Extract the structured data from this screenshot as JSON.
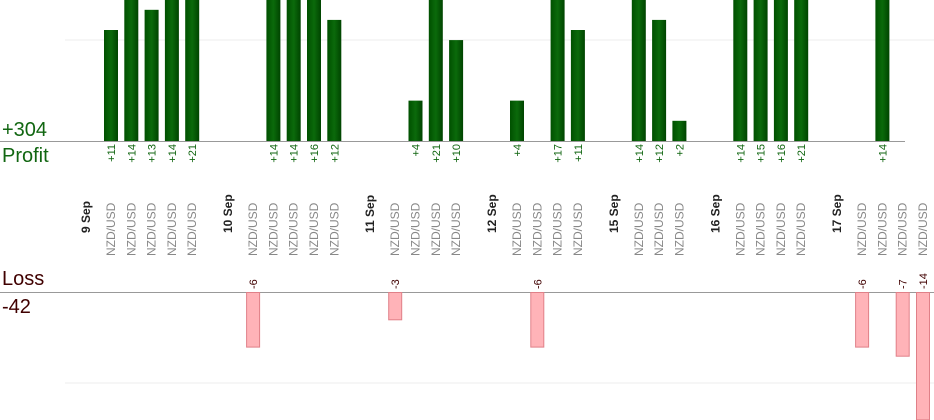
{
  "summary": {
    "profit_total": "+304",
    "profit_label": "Profit",
    "loss_label": "Loss",
    "loss_total": "-42"
  },
  "colors": {
    "profit_bar": "#0b6a0b",
    "profit_text": "#116611",
    "loss_bar": "#ffb3b8",
    "loss_bar_border": "#e08088",
    "loss_text": "#400000",
    "date_text": "#222222",
    "pair_text": "#888888",
    "axis": "#999999",
    "grid": "#eeeeee"
  },
  "chart_data": {
    "type": "bar",
    "title": "",
    "xlabel": "",
    "ylabel": "",
    "grid": true,
    "dates": [
      "9 Sep",
      "10 Sep",
      "11 Sep",
      "12 Sep",
      "15 Sep",
      "16 Sep",
      "17 Sep"
    ],
    "groups": [
      {
        "date": "9 Sep",
        "trades": [
          {
            "pair": "NZD/USD",
            "value": 11,
            "label": "+11"
          },
          {
            "pair": "NZD/USD",
            "value": 14,
            "label": "+14"
          },
          {
            "pair": "NZD/USD",
            "value": 13,
            "label": "+13"
          },
          {
            "pair": "NZD/USD",
            "value": 14,
            "label": "+14"
          },
          {
            "pair": "NZD/USD",
            "value": 21,
            "label": "+21"
          }
        ]
      },
      {
        "date": "10 Sep",
        "trades": [
          {
            "pair": "NZD/USD",
            "value": -6,
            "label": "-6"
          },
          {
            "pair": "NZD/USD",
            "value": 14,
            "label": "+14"
          },
          {
            "pair": "NZD/USD",
            "value": 14,
            "label": "+14"
          },
          {
            "pair": "NZD/USD",
            "value": 16,
            "label": "+16"
          },
          {
            "pair": "NZD/USD",
            "value": 12,
            "label": "+12"
          }
        ]
      },
      {
        "date": "11 Sep",
        "trades": [
          {
            "pair": "NZD/USD",
            "value": -3,
            "label": "-3"
          },
          {
            "pair": "NZD/USD",
            "value": 4,
            "label": "+4"
          },
          {
            "pair": "NZD/USD",
            "value": 21,
            "label": "+21"
          },
          {
            "pair": "NZD/USD",
            "value": 10,
            "label": "+10"
          }
        ]
      },
      {
        "date": "12 Sep",
        "trades": [
          {
            "pair": "NZD/USD",
            "value": 4,
            "label": "+4"
          },
          {
            "pair": "NZD/USD",
            "value": -6,
            "label": "-6"
          },
          {
            "pair": "NZD/USD",
            "value": 17,
            "label": "+17"
          },
          {
            "pair": "NZD/USD",
            "value": 11,
            "label": "+11"
          }
        ]
      },
      {
        "date": "15 Sep",
        "trades": [
          {
            "pair": "NZD/USD",
            "value": 14,
            "label": "+14"
          },
          {
            "pair": "NZD/USD",
            "value": 12,
            "label": "+12"
          },
          {
            "pair": "NZD/USD",
            "value": 2,
            "label": "+2"
          }
        ]
      },
      {
        "date": "16 Sep",
        "trades": [
          {
            "pair": "NZD/USD",
            "value": 14,
            "label": "+14"
          },
          {
            "pair": "NZD/USD",
            "value": 15,
            "label": "+15"
          },
          {
            "pair": "NZD/USD",
            "value": 16,
            "label": "+16"
          },
          {
            "pair": "NZD/USD",
            "value": 21,
            "label": "+21"
          }
        ]
      },
      {
        "date": "17 Sep",
        "trades": [
          {
            "pair": "NZD/USD",
            "value": -6,
            "label": "-6"
          },
          {
            "pair": "NZD/USD",
            "value": 14,
            "label": "+14"
          },
          {
            "pair": "NZD/USD",
            "value": -7,
            "label": "-7"
          },
          {
            "pair": "NZD/USD",
            "value": -14,
            "label": "-14"
          }
        ]
      }
    ]
  }
}
